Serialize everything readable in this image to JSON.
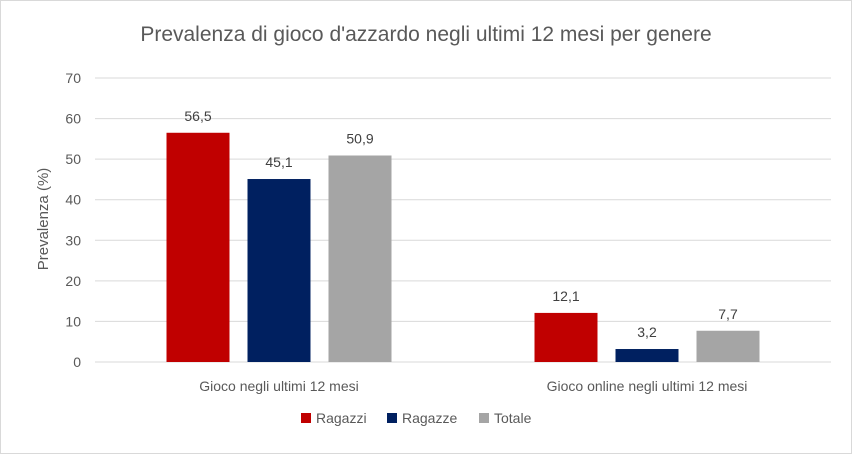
{
  "chart_data": {
    "type": "bar",
    "title": "Prevalenza di gioco d'azzardo negli ultimi 12 mesi per genere",
    "xlabel": "",
    "ylabel": "Prevalenza (%)",
    "ylim": [
      0,
      70
    ],
    "yticks": [
      0,
      10,
      20,
      30,
      40,
      50,
      60,
      70
    ],
    "grid": true,
    "legend_position": "bottom",
    "categories": [
      "Gioco negli ultimi 12 mesi",
      "Gioco online negli ultimi 12 mesi"
    ],
    "series": [
      {
        "name": "Ragazzi",
        "color": "#c00000",
        "values": [
          56.5,
          12.1
        ],
        "labels": [
          "56,5",
          "12,1"
        ]
      },
      {
        "name": "Ragazze",
        "color": "#002060",
        "values": [
          45.1,
          3.2
        ],
        "labels": [
          "45,1",
          "3,2"
        ]
      },
      {
        "name": "Totale",
        "color": "#a5a5a5",
        "values": [
          50.9,
          7.7
        ],
        "labels": [
          "50,9",
          "7,7"
        ]
      }
    ]
  }
}
